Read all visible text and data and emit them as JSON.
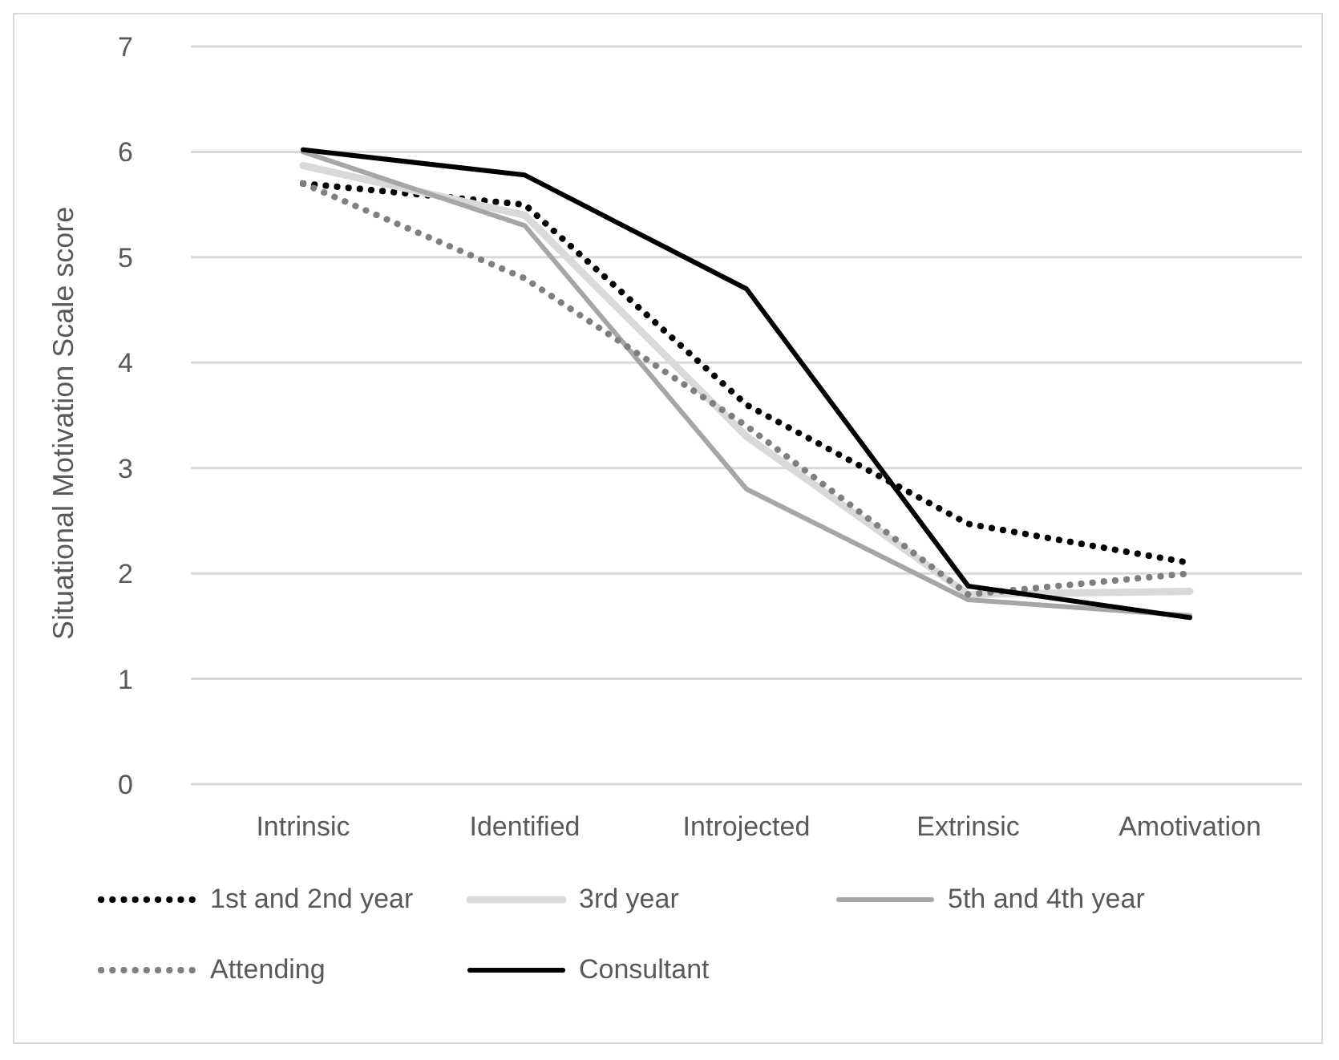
{
  "chart_data": {
    "type": "line",
    "ylabel": "Situational Motivation Scale score",
    "categories": [
      "Intrinsic",
      "Identified",
      "Introjected",
      "Extrinsic",
      "Amotivation"
    ],
    "ylim": [
      0,
      7
    ],
    "yticks": [
      0,
      1,
      2,
      3,
      4,
      5,
      6,
      7
    ],
    "grid": "y",
    "legend": "bottom",
    "marker": "none",
    "series": [
      {
        "name": "1st and 2nd year",
        "color": "#000000",
        "line_style": "dotted",
        "values": [
          5.7,
          5.5,
          3.6,
          2.47,
          2.1
        ]
      },
      {
        "name": "3rd year",
        "color": "#d9d9d9",
        "line_style": "solid",
        "values": [
          5.87,
          5.4,
          3.3,
          1.8,
          1.83
        ]
      },
      {
        "name": "5th and 4th year",
        "color": "#a6a6a6",
        "line_style": "solid",
        "values": [
          6.0,
          5.3,
          2.8,
          1.75,
          1.6
        ]
      },
      {
        "name": "Attending",
        "color": "#7f7f7f",
        "line_style": "dotted",
        "values": [
          5.7,
          4.8,
          3.4,
          1.8,
          2.0
        ]
      },
      {
        "name": "Consultant",
        "color": "#000000",
        "line_style": "solid",
        "values": [
          6.02,
          5.78,
          4.7,
          1.88,
          1.58
        ]
      }
    ]
  }
}
